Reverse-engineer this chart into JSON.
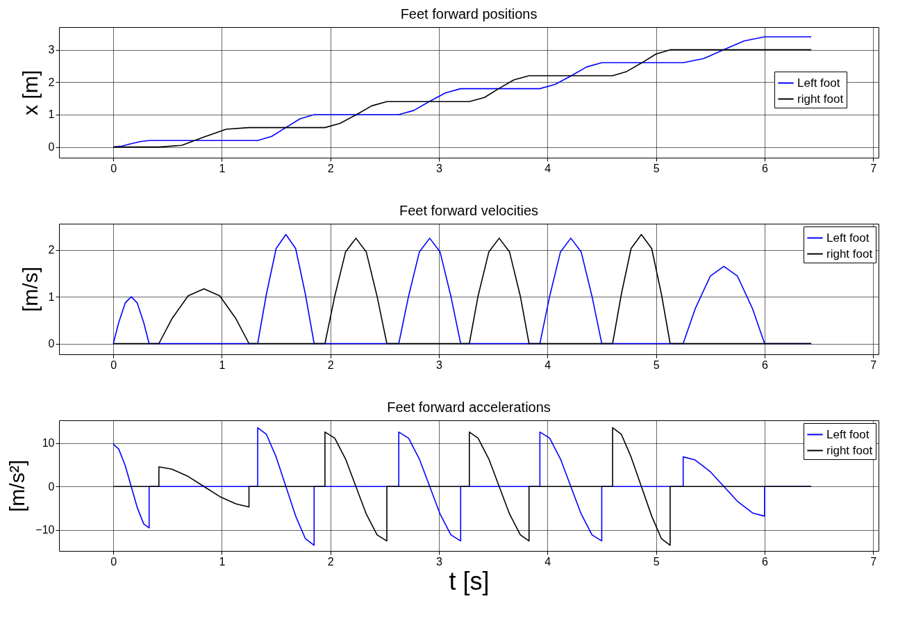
{
  "chart_data": [
    {
      "type": "line",
      "title": "Feet forward positions",
      "ylabel": "x [m]",
      "xlim": [
        -0.5,
        7.05
      ],
      "xticks": [
        0,
        1,
        2,
        3,
        4,
        5,
        6,
        7
      ],
      "ylim": [
        -0.33,
        3.7
      ],
      "yticks": [
        0,
        1,
        2,
        3
      ],
      "grid": true,
      "legend": "right",
      "line_style": "solid",
      "series": [
        {
          "name": "Left foot",
          "color": "#0000ff",
          "x": [
            0,
            0.08,
            0.16,
            0.25,
            0.33,
            1.33,
            1.46,
            1.59,
            1.72,
            1.85,
            2.63,
            2.77,
            2.91,
            3.06,
            3.2,
            3.93,
            4.07,
            4.22,
            4.36,
            4.5,
            5.25,
            5.44,
            5.62,
            5.81,
            6.0,
            6.43
          ],
          "values": [
            0,
            0.03,
            0.1,
            0.17,
            0.2,
            0.2,
            0.33,
            0.6,
            0.87,
            1.0,
            1.0,
            1.13,
            1.4,
            1.67,
            1.8,
            1.8,
            1.93,
            2.2,
            2.47,
            2.6,
            2.6,
            2.73,
            3.0,
            3.27,
            3.4,
            3.4
          ]
        },
        {
          "name": "right foot",
          "color": "#000000",
          "x": [
            0,
            0.42,
            0.63,
            0.83,
            1.04,
            1.25,
            1.95,
            2.09,
            2.24,
            2.38,
            2.52,
            3.28,
            3.42,
            3.55,
            3.69,
            3.83,
            4.6,
            4.73,
            4.87,
            5.0,
            5.13,
            6.43
          ],
          "values": [
            0,
            0,
            0.05,
            0.3,
            0.55,
            0.6,
            0.6,
            0.73,
            1.0,
            1.27,
            1.4,
            1.4,
            1.53,
            1.8,
            2.07,
            2.2,
            2.2,
            2.33,
            2.6,
            2.87,
            3.0,
            3.0
          ]
        }
      ]
    },
    {
      "type": "line",
      "title": "Feet forward velocities",
      "ylabel": "[m/s]",
      "xlim": [
        -0.5,
        7.05
      ],
      "xticks": [
        0,
        1,
        2,
        3,
        4,
        5,
        6,
        7
      ],
      "ylim": [
        -0.23,
        2.56
      ],
      "yticks": [
        0,
        1,
        2
      ],
      "grid": true,
      "legend": "top right",
      "line_style": "solid",
      "series": [
        {
          "name": "Left foot",
          "color": "#0000ff",
          "x": [
            0,
            0.05,
            0.11,
            0.165,
            0.22,
            0.28,
            0.33,
            1.33,
            1.41,
            1.5,
            1.59,
            1.68,
            1.77,
            1.85,
            2.63,
            2.72,
            2.82,
            2.915,
            3.01,
            3.11,
            3.2,
            3.93,
            4.02,
            4.12,
            4.215,
            4.31,
            4.41,
            4.5,
            5.25,
            5.36,
            5.5,
            5.625,
            5.75,
            5.89,
            6.0,
            6.43
          ],
          "values": [
            0,
            0.45,
            0.87,
            1.0,
            0.87,
            0.45,
            0,
            0,
            1.05,
            2.03,
            2.33,
            2.03,
            1.05,
            0,
            0,
            1.01,
            1.96,
            2.25,
            1.96,
            1.01,
            0,
            0,
            1.01,
            1.96,
            2.25,
            1.96,
            1.01,
            0,
            0,
            0.74,
            1.44,
            1.65,
            1.44,
            0.74,
            0,
            0
          ]
        },
        {
          "name": "right foot",
          "color": "#000000",
          "x": [
            0,
            0.42,
            0.54,
            0.69,
            0.835,
            0.98,
            1.13,
            1.25,
            1.95,
            2.04,
            2.14,
            2.235,
            2.33,
            2.43,
            2.52,
            3.28,
            3.36,
            3.46,
            3.555,
            3.65,
            3.75,
            3.83,
            4.6,
            4.68,
            4.77,
            4.865,
            4.96,
            5.05,
            5.13,
            6.43
          ],
          "values": [
            0,
            0,
            0.53,
            1.02,
            1.17,
            1.02,
            0.53,
            0,
            0,
            1.01,
            1.96,
            2.25,
            1.96,
            1.01,
            0,
            0,
            1.01,
            1.96,
            2.25,
            1.96,
            1.01,
            0,
            0,
            1.05,
            2.03,
            2.33,
            2.03,
            1.05,
            0,
            0
          ]
        }
      ]
    },
    {
      "type": "line",
      "title": "Feet forward accelerations",
      "xlabel": "t [s]",
      "ylabel": "[m/s²]",
      "xlim": [
        -0.5,
        7.05
      ],
      "xticks": [
        0,
        1,
        2,
        3,
        4,
        5,
        6,
        7
      ],
      "ylim": [
        -14.8,
        15.2
      ],
      "yticks": [
        -10,
        0,
        10
      ],
      "grid": true,
      "legend": "top right",
      "line_style": "solid",
      "series": [
        {
          "name": "Left foot",
          "color": "#0000ff",
          "x": [
            0,
            0.05,
            0.11,
            0.165,
            0.22,
            0.28,
            0.33,
            0.33,
            1.33,
            1.33,
            1.41,
            1.5,
            1.59,
            1.68,
            1.77,
            1.85,
            1.85,
            2.63,
            2.63,
            2.72,
            2.82,
            2.915,
            3.01,
            3.11,
            3.2,
            3.2,
            3.93,
            3.93,
            4.02,
            4.12,
            4.215,
            4.31,
            4.41,
            4.5,
            4.5,
            5.25,
            5.25,
            5.36,
            5.5,
            5.625,
            5.75,
            5.89,
            6.0,
            6.0,
            6.43
          ],
          "values": [
            9.7,
            8.6,
            4.8,
            0,
            -4.8,
            -8.6,
            -9.5,
            0,
            0,
            13.5,
            12.0,
            6.8,
            0,
            -6.8,
            -12.0,
            -13.5,
            0,
            0,
            12.5,
            11.1,
            6.3,
            0,
            -6.3,
            -11.1,
            -12.5,
            0,
            0,
            12.5,
            11.1,
            6.3,
            0,
            -6.3,
            -11.1,
            -12.5,
            0,
            0,
            6.8,
            6.1,
            3.4,
            0,
            -3.4,
            -6.1,
            -6.8,
            0,
            0
          ]
        },
        {
          "name": "right foot",
          "color": "#000000",
          "x": [
            0,
            0.42,
            0.42,
            0.54,
            0.69,
            0.835,
            0.98,
            1.13,
            1.25,
            1.25,
            1.95,
            1.95,
            2.04,
            2.14,
            2.235,
            2.33,
            2.43,
            2.52,
            2.52,
            3.28,
            3.28,
            3.36,
            3.46,
            3.555,
            3.65,
            3.75,
            3.83,
            3.83,
            4.6,
            4.6,
            4.68,
            4.77,
            4.865,
            4.96,
            5.05,
            5.13,
            5.13,
            6.43
          ],
          "values": [
            0,
            0,
            4.5,
            4.0,
            2.3,
            0,
            -2.3,
            -4.0,
            -4.7,
            0,
            0,
            12.5,
            11.1,
            6.3,
            0,
            -6.3,
            -11.1,
            -12.5,
            0,
            0,
            12.5,
            11.1,
            6.3,
            0,
            -6.3,
            -11.1,
            -12.5,
            0,
            0,
            13.5,
            12.0,
            6.8,
            0,
            -6.8,
            -12.0,
            -13.5,
            0,
            0
          ]
        }
      ]
    }
  ]
}
